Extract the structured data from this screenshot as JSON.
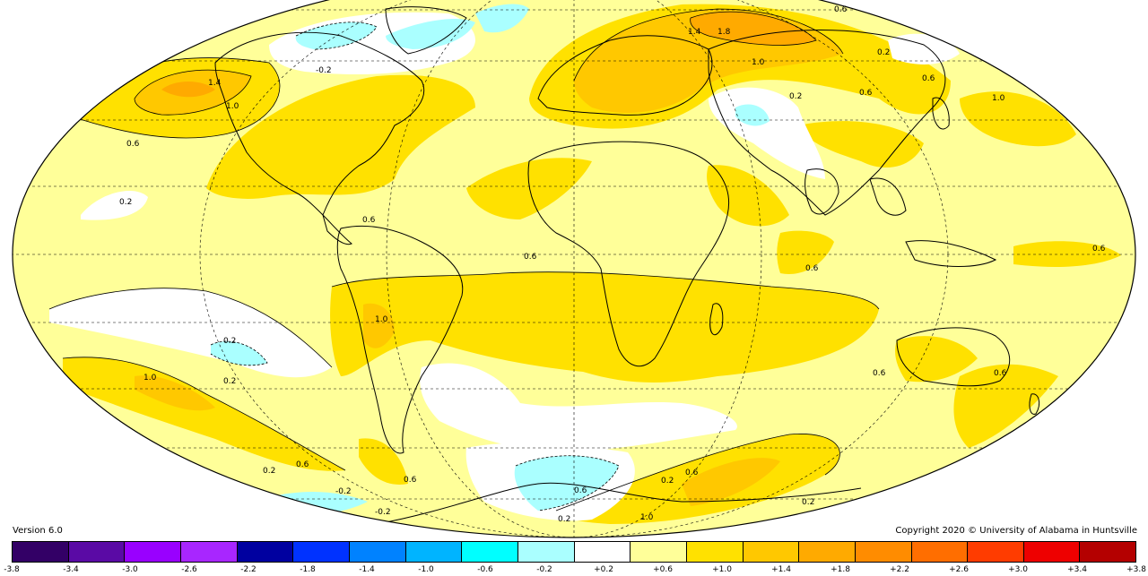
{
  "footer": {
    "version": "Version 6.0",
    "copyright": "Copyright 2020 © University of Alabama in Huntsville"
  },
  "colorbar": {
    "colors": [
      "#330066",
      "#5a0aa5",
      "#9900ff",
      "#a826ff",
      "#0000a0",
      "#0032ff",
      "#0082ff",
      "#00b4ff",
      "#00ffff",
      "#aaffff",
      "#ffffff",
      "#ffff99",
      "#ffe100",
      "#ffc800",
      "#ffaa00",
      "#ff8c00",
      "#ff6e00",
      "#ff3c00",
      "#ee0000",
      "#b40000"
    ],
    "tick_labels": [
      "-3.8",
      "-3.4",
      "-3.0",
      "-2.6",
      "-2.2",
      "-1.8",
      "-1.4",
      "-1.0",
      "-0.6",
      "-0.2",
      "+0.2",
      "+0.6",
      "+1.0",
      "+1.4",
      "+1.8",
      "+2.2",
      "+2.6",
      "+3.0",
      "+3.4",
      "+3.8"
    ]
  },
  "contour_labels": [
    "1.4",
    "1.0",
    "0.6",
    "0.2",
    "-0.2",
    "1.8",
    "1.4",
    "1.0",
    "0.6",
    "0.2",
    "0.6",
    "0.2",
    "0.6",
    "0.6",
    "0.6",
    "1.0",
    "0.6",
    "0.6",
    "1.0",
    "0.2",
    "0.2",
    "1.0",
    "0.6",
    "0.2",
    "0.6",
    "-0.2",
    "0.6",
    "0.2",
    "0.6",
    "1.0",
    "0.2",
    "0.2",
    "-0.2",
    "0.6",
    "0.6"
  ],
  "map": {
    "projection": "Mollweide",
    "fill_colors": {
      "base": "#ffff99",
      "warm_1": "#ffe100",
      "warm_2": "#ffc800",
      "warm_3": "#ffaa00",
      "neutral": "#ffffff",
      "cool": "#aaffff"
    }
  }
}
